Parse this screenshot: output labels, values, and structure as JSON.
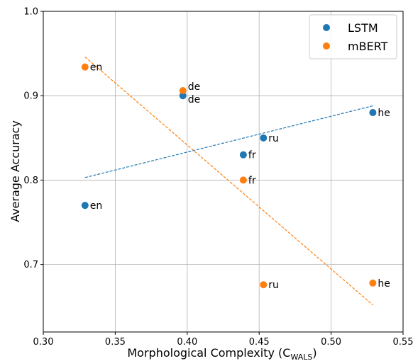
{
  "chart_data": {
    "type": "scatter",
    "title": "",
    "xlabel": "Morphological Complexity (C",
    "xlabel_subscript": "WALS",
    "xlabel_suffix": ")",
    "ylabel": "Average Accuracy",
    "xlim": [
      0.3,
      0.55
    ],
    "ylim": [
      0.62,
      1.0
    ],
    "x_ticks": [
      "0.30",
      "0.35",
      "0.40",
      "0.45",
      "0.50",
      "0.55"
    ],
    "y_ticks": [
      "0.7",
      "0.8",
      "0.9",
      "1.0"
    ],
    "grid": true,
    "legend_position": "top-right",
    "series": [
      {
        "name": "LSTM",
        "color": "#1f77b4",
        "points": [
          {
            "label": "en",
            "x": 0.329,
            "y": 0.77
          },
          {
            "label": "de",
            "x": 0.397,
            "y": 0.9
          },
          {
            "label": "fr",
            "x": 0.439,
            "y": 0.83
          },
          {
            "label": "ru",
            "x": 0.453,
            "y": 0.85
          },
          {
            "label": "he",
            "x": 0.529,
            "y": 0.88
          }
        ],
        "trend": {
          "x": [
            0.329,
            0.529
          ],
          "y": [
            0.803,
            0.888
          ]
        }
      },
      {
        "name": "mBERT",
        "color": "#ff7f0e",
        "points": [
          {
            "label": "en",
            "x": 0.329,
            "y": 0.934
          },
          {
            "label": "de",
            "x": 0.397,
            "y": 0.906
          },
          {
            "label": "fr",
            "x": 0.439,
            "y": 0.8
          },
          {
            "label": "ru",
            "x": 0.453,
            "y": 0.676
          },
          {
            "label": "he",
            "x": 0.529,
            "y": 0.678
          }
        ],
        "trend": {
          "x": [
            0.329,
            0.529
          ],
          "y": [
            0.946,
            0.652
          ]
        }
      }
    ]
  }
}
